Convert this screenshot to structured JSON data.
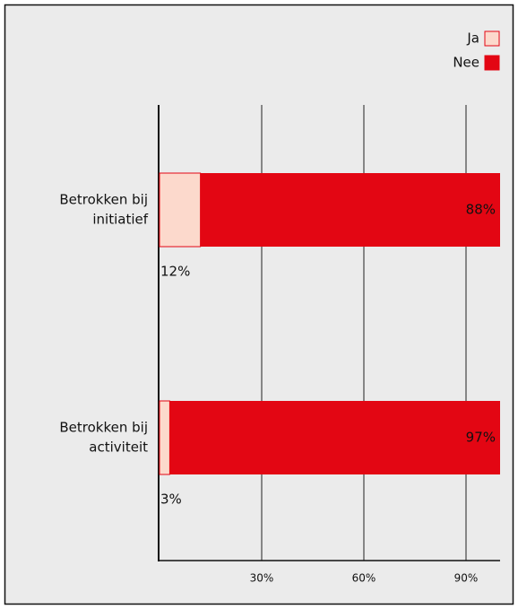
{
  "chart_data": {
    "type": "stacked-bar-horizontal",
    "categories": [
      [
        "Betrokken bij",
        "initiatief"
      ],
      [
        "Betrokken bij",
        "activiteit"
      ]
    ],
    "series": [
      {
        "name": "Ja",
        "color": "#fcd9cc",
        "values": [
          12,
          3
        ],
        "value_labels": [
          "12%",
          "3%"
        ]
      },
      {
        "name": "Nee",
        "color": "#e30613",
        "values": [
          88,
          97
        ],
        "value_labels": [
          "88%",
          "97%"
        ]
      }
    ],
    "xlim": [
      0,
      100
    ],
    "xticks": [
      {
        "value": 30,
        "label": "30%"
      },
      {
        "value": 60,
        "label": "60%"
      },
      {
        "value": 90,
        "label": "90%"
      }
    ],
    "grid": true,
    "legend": "top-right"
  }
}
